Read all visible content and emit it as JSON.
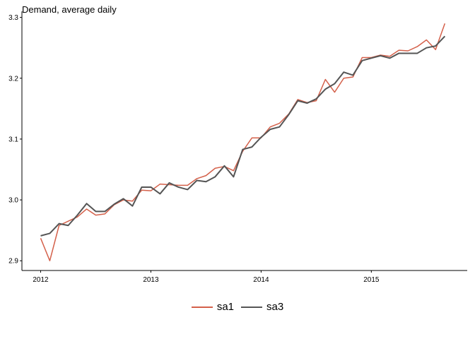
{
  "chart_data": {
    "type": "line",
    "title": "Demand, average daily",
    "xlabel": "",
    "ylabel": "",
    "xlim": [
      2011.83,
      2015.87
    ],
    "ylim": [
      2.884,
      3.31
    ],
    "x_ticks": [
      2012,
      2013,
      2014,
      2015
    ],
    "x_tick_labels": [
      "2012",
      "2013",
      "2014",
      "2015"
    ],
    "y_ticks": [
      2.9,
      3.0,
      3.1,
      3.2,
      3.3
    ],
    "y_tick_labels": [
      "2.9",
      "3.0",
      "3.1",
      "3.2",
      "3.3"
    ],
    "grid": false,
    "legend_position": "bottom",
    "x": [
      2012.0,
      2012.083,
      2012.167,
      2012.25,
      2012.333,
      2012.417,
      2012.5,
      2012.583,
      2012.667,
      2012.75,
      2012.833,
      2012.917,
      2013.0,
      2013.083,
      2013.167,
      2013.25,
      2013.333,
      2013.417,
      2013.5,
      2013.583,
      2013.667,
      2013.75,
      2013.833,
      2013.917,
      2014.0,
      2014.083,
      2014.167,
      2014.25,
      2014.333,
      2014.417,
      2014.5,
      2014.583,
      2014.667,
      2014.75,
      2014.833,
      2014.917,
      2015.0,
      2015.083,
      2015.167,
      2015.25,
      2015.333,
      2015.417,
      2015.5,
      2015.583,
      2015.667
    ],
    "series": [
      {
        "name": "sa1",
        "color": "#d4604a",
        "values": [
          2.937,
          2.9,
          2.958,
          2.965,
          2.972,
          2.985,
          2.975,
          2.977,
          2.992,
          3.0,
          2.998,
          3.016,
          3.015,
          3.026,
          3.025,
          3.024,
          3.024,
          3.035,
          3.04,
          3.052,
          3.055,
          3.048,
          3.08,
          3.102,
          3.102,
          3.12,
          3.126,
          3.141,
          3.165,
          3.16,
          3.163,
          3.198,
          3.177,
          3.2,
          3.202,
          3.234,
          3.234,
          3.238,
          3.236,
          3.246,
          3.245,
          3.252,
          3.263,
          3.247,
          3.29
        ]
      },
      {
        "name": "sa3",
        "color": "#555555",
        "values": [
          2.941,
          2.945,
          2.961,
          2.958,
          2.975,
          2.994,
          2.981,
          2.981,
          2.993,
          3.002,
          2.99,
          3.021,
          3.021,
          3.01,
          3.028,
          3.021,
          3.017,
          3.032,
          3.03,
          3.038,
          3.056,
          3.038,
          3.083,
          3.087,
          3.103,
          3.116,
          3.12,
          3.14,
          3.163,
          3.159,
          3.166,
          3.182,
          3.191,
          3.21,
          3.205,
          3.229,
          3.233,
          3.237,
          3.233,
          3.241,
          3.241,
          3.241,
          3.25,
          3.253,
          3.269
        ]
      }
    ]
  }
}
